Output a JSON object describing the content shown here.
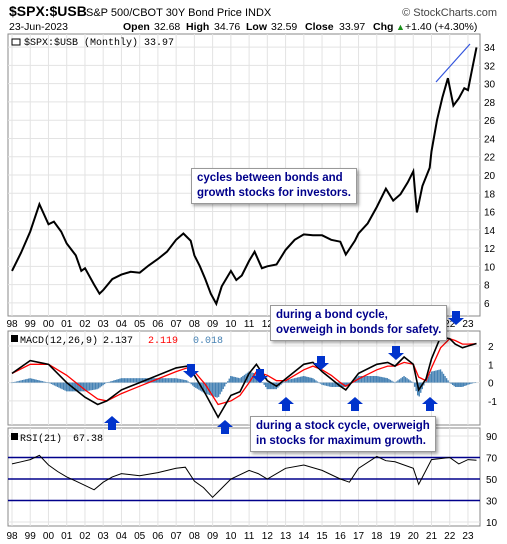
{
  "header": {
    "symbol": "$SPX:$USB",
    "name": "S&P 500/CBOT 30Y Bond Price INDX",
    "brand": "© StockCharts.com",
    "date": "23-Jun-2023",
    "open_label": "Open",
    "open": "32.68",
    "high_label": "High",
    "high": "34.76",
    "low_label": "Low",
    "low": "32.59",
    "close_label": "Close",
    "close": "33.97",
    "chg_label": "Chg",
    "chg": "+1.40 (+4.30%)",
    "chg_arrow": "▲"
  },
  "annotations": {
    "bonds_cycle_note": "cycles between bonds and\ngrowth stocks for investors.",
    "bond_cycle": "during a bond cycle,\noverweigh in bonds for safety.",
    "stock_cycle": "during a stock cycle, overweigh\nin stocks for maximum growth."
  },
  "colors": {
    "price": "#000000",
    "macd": "#000000",
    "signal": "#ff0000",
    "histogram": "#4682b4",
    "rsi": "#000000",
    "rsi_levels": "#00008b",
    "arrows": "#0033cc",
    "trendline": "#3355dd",
    "annotation_text": "#00008b"
  },
  "chart_data": [
    {
      "type": "line",
      "panel": "price",
      "legend": "$SPX:$USB (Monthly) 33.97",
      "y_ticks": [
        6,
        8,
        10,
        12,
        14,
        16,
        18,
        20,
        22,
        24,
        26,
        28,
        30,
        32,
        34
      ],
      "ylim": [
        5,
        35
      ],
      "grid": true,
      "x_ticks": [
        "98",
        "99",
        "00",
        "01",
        "02",
        "03",
        "04",
        "05",
        "06",
        "07",
        "08",
        "09",
        "10",
        "11",
        "12",
        "13",
        "14",
        "15",
        "16",
        "17",
        "18",
        "19",
        "20",
        "21",
        "22",
        "23"
      ],
      "x_year_start": 1998,
      "x": [
        1998,
        1998.5,
        1999,
        1999.5,
        2000,
        2000.3,
        2000.7,
        2001,
        2001.5,
        2001.8,
        2002,
        2002.5,
        2002.8,
        2003,
        2003.5,
        2004,
        2004.5,
        2005,
        2005.5,
        2006,
        2006.5,
        2007,
        2007.4,
        2007.8,
        2008,
        2008.3,
        2008.6,
        2008.9,
        2009.2,
        2009.5,
        2010,
        2010.3,
        2010.6,
        2011,
        2011.3,
        2011.7,
        2012,
        2012.5,
        2013,
        2013.5,
        2014,
        2014.5,
        2015,
        2015.5,
        2016,
        2016.3,
        2016.8,
        2017,
        2017.5,
        2018,
        2018.5,
        2018.9,
        2019.3,
        2019.7,
        2020,
        2020.2,
        2020.5,
        2020.9,
        2021,
        2021.3,
        2021.6,
        2021.9,
        2022.2,
        2022.5,
        2022.8,
        2023,
        2023.2,
        2023.47
      ],
      "values": [
        9.5,
        11.5,
        13.8,
        16.8,
        14.6,
        14.9,
        13.8,
        12.5,
        11.2,
        9.5,
        9.8,
        8.0,
        7.0,
        7.4,
        8.6,
        9.1,
        9.4,
        9.3,
        10.1,
        10.8,
        11.6,
        12.9,
        13.6,
        12.8,
        11.2,
        10.0,
        8.6,
        7.0,
        5.9,
        7.8,
        9.5,
        8.5,
        9.0,
        10.6,
        11.6,
        9.8,
        10.0,
        10.2,
        11.8,
        12.9,
        13.5,
        13.4,
        13.4,
        12.9,
        12.7,
        11.3,
        12.8,
        13.6,
        14.7,
        16.5,
        18.5,
        17.2,
        17.9,
        19.2,
        20.4,
        15.9,
        18.8,
        20.8,
        22.6,
        26.0,
        28.5,
        30.6,
        27.6,
        28.4,
        29.5,
        29.3,
        31.3,
        33.97
      ]
    },
    {
      "type": "line",
      "panel": "macd",
      "legend_prefix": "MACD(12,26,9)",
      "macd_value": "2.137",
      "signal_value": "2.119",
      "hist_value": "0.018",
      "y_ticks": [
        -1,
        0,
        1,
        2
      ],
      "ylim": [
        -2.1,
        2.6
      ],
      "x": [
        1998,
        1999,
        2000,
        2001,
        2002,
        2002.7,
        2003.2,
        2004,
        2005,
        2006,
        2007,
        2007.6,
        2008,
        2008.6,
        2009.3,
        2010,
        2010.5,
        2011,
        2011.4,
        2012,
        2012.5,
        2013,
        2014,
        2014.5,
        2015,
        2015.5,
        2016,
        2016.3,
        2017,
        2018,
        2018.6,
        2019,
        2019.5,
        2020,
        2020.3,
        2020.7,
        2021,
        2021.5,
        2022,
        2022.3,
        2022.7,
        2023,
        2023.47
      ],
      "macd": [
        0.5,
        1.2,
        1.0,
        0.0,
        -0.8,
        -1.2,
        -1.0,
        -0.4,
        0.0,
        0.4,
        0.8,
        0.9,
        0.4,
        -0.6,
        -1.9,
        -0.7,
        -0.5,
        0.5,
        1.0,
        0.1,
        -0.2,
        0.2,
        1.0,
        1.1,
        0.6,
        0.2,
        -0.2,
        -0.4,
        0.5,
        1.0,
        1.1,
        0.9,
        1.4,
        1.0,
        -0.4,
        0.2,
        1.3,
        2.5,
        2.4,
        2.1,
        1.9,
        2.0,
        2.137
      ],
      "signal": [
        0.5,
        1.0,
        1.0,
        0.4,
        -0.4,
        -0.9,
        -1.0,
        -0.6,
        -0.2,
        0.2,
        0.6,
        0.8,
        0.6,
        -0.1,
        -1.2,
        -1.0,
        -0.7,
        0.0,
        0.6,
        0.4,
        0.1,
        0.1,
        0.7,
        0.9,
        0.7,
        0.4,
        0.0,
        -0.2,
        0.2,
        0.7,
        0.9,
        0.9,
        1.1,
        1.0,
        0.3,
        0.1,
        0.8,
        1.9,
        2.4,
        2.3,
        2.1,
        2.1,
        2.119
      ]
    },
    {
      "type": "line",
      "panel": "rsi",
      "legend_prefix": "RSI(21)",
      "rsi_value": "67.38",
      "y_ticks": [
        10,
        30,
        50,
        70,
        90
      ],
      "ylim": [
        10,
        90
      ],
      "levels": [
        30,
        50,
        70
      ],
      "x": [
        1998,
        1998.5,
        1999,
        1999.5,
        2000,
        2000.5,
        2001,
        2001.5,
        2002,
        2002.5,
        2003,
        2003.5,
        2004,
        2005,
        2006,
        2007,
        2007.5,
        2008,
        2008.5,
        2009,
        2009.3,
        2010,
        2011,
        2011.5,
        2012,
        2013,
        2014,
        2015,
        2016,
        2016.5,
        2017,
        2018,
        2018.5,
        2019,
        2020,
        2020.3,
        2021,
        2022,
        2022.5,
        2023,
        2023.47
      ],
      "values": [
        64,
        66,
        68,
        72,
        63,
        57,
        52,
        48,
        44,
        40,
        47,
        52,
        55,
        53,
        56,
        60,
        61,
        48,
        42,
        33,
        38,
        50,
        58,
        55,
        50,
        60,
        63,
        58,
        50,
        47,
        60,
        71,
        67,
        66,
        60,
        45,
        68,
        70,
        64,
        68,
        67.38
      ]
    }
  ]
}
